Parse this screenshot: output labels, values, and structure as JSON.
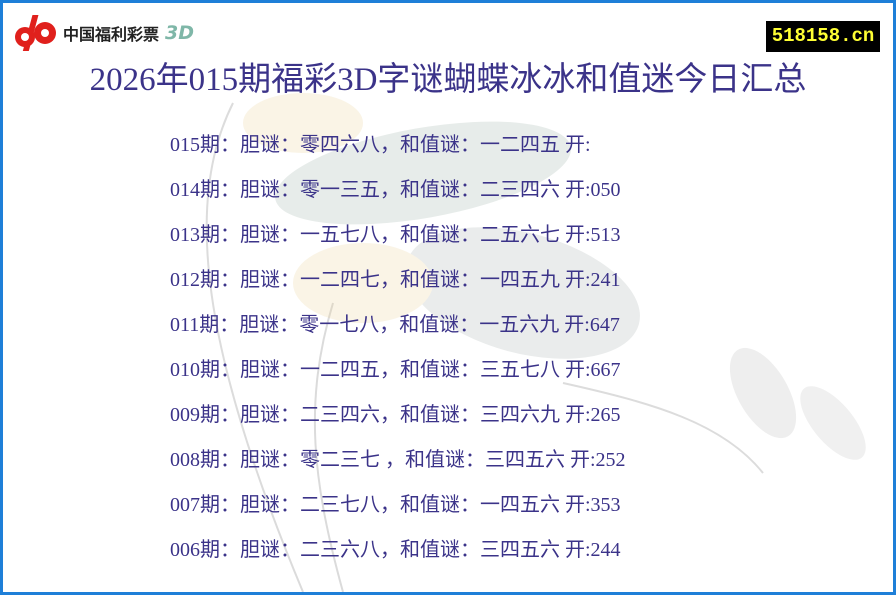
{
  "logo": {
    "brand_text": "中国福利彩票",
    "suffix": "3D"
  },
  "site_badge": "518158.cn",
  "title": "2026年015期福彩3D字谜蝴蝶冰冰和值迷今日汇总",
  "rows": [
    "015期：胆谜：零四六八，和值谜：一二四五 开:",
    "014期：胆谜：零一三五，和值谜：二三四六 开:050",
    "013期：胆谜：一五七八，和值谜：二五六七 开:513",
    "012期：胆谜：一二四七，和值谜：一四五九 开:241",
    "011期：胆谜：零一七八，和值谜：一五六九 开:647",
    "010期：胆谜：一二四五，和值谜：三五七八 开:667",
    "009期：胆谜：二三四六，和值谜：三四六九 开:265",
    "008期：胆谜：零二三七 ，和值谜：三四五六 开:252",
    "007期：胆谜：二三七八，和值谜：一四五六 开:353",
    "006期：胆谜：二三六八，和值谜：三四五六 开:244"
  ],
  "colors": {
    "border": "#1e7fd8",
    "text": "#3b3389",
    "badge_bg": "#000000",
    "badge_text": "#ffff33",
    "logo_red": "#e0201c"
  }
}
